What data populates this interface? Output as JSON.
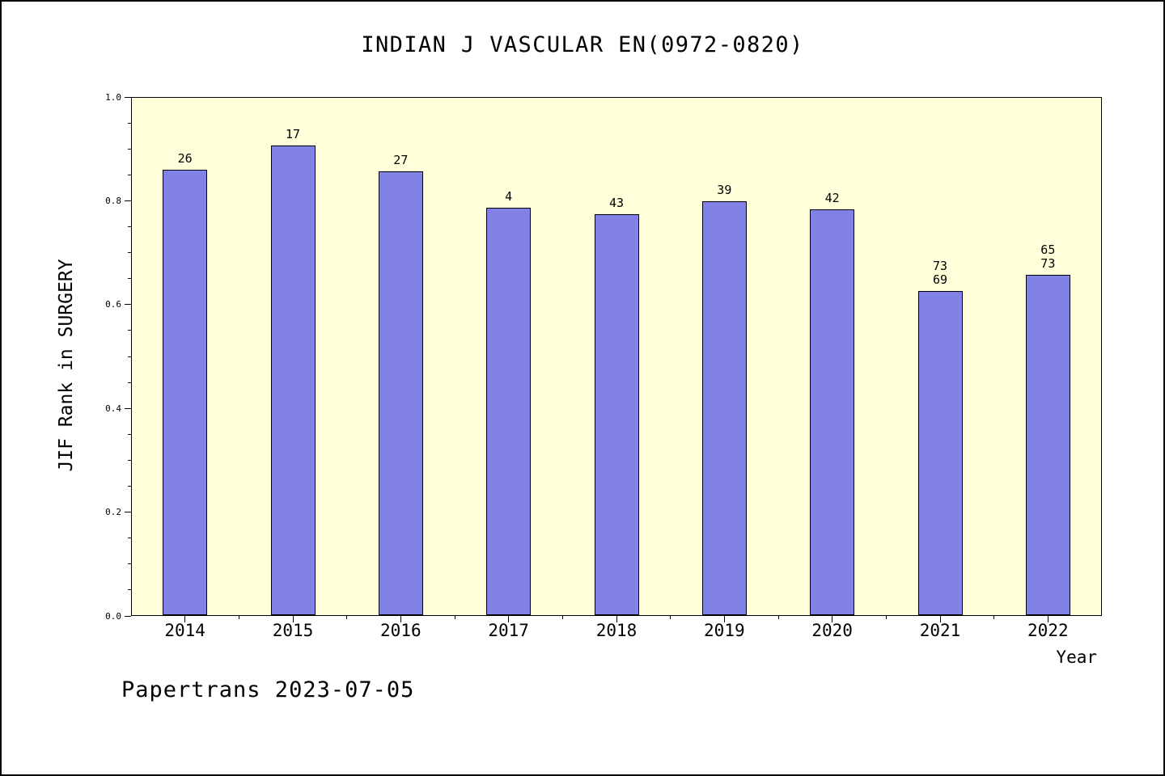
{
  "footer": "Papertrans 2023-07-05",
  "chart_data": {
    "type": "bar",
    "title": "INDIAN J VASCULAR EN(0972-0820)",
    "xlabel": "Year",
    "ylabel": "JIF Rank in SURGERY",
    "categories": [
      "2014",
      "2015",
      "2016",
      "2017",
      "2018",
      "2019",
      "2020",
      "2021",
      "2022"
    ],
    "values": [
      0.86,
      0.907,
      0.857,
      0.786,
      0.774,
      0.799,
      0.783,
      0.626,
      0.657
    ],
    "bar_labels": [
      [
        "26"
      ],
      [
        "17"
      ],
      [
        "27"
      ],
      [
        "4"
      ],
      [
        "43"
      ],
      [
        "39"
      ],
      [
        "42"
      ],
      [
        "73",
        "69"
      ],
      [
        "65",
        "73"
      ]
    ],
    "ylim": [
      0.0,
      1.0
    ],
    "yticks": [
      0.0,
      0.2,
      0.4,
      0.6,
      0.8,
      1.0
    ],
    "grid": false,
    "legend": "none",
    "colors": {
      "bar_fill": "#8181e6",
      "bar_edge": "#000000",
      "plot_background": "#ffffd9",
      "figure_background": "#ffffff"
    }
  }
}
